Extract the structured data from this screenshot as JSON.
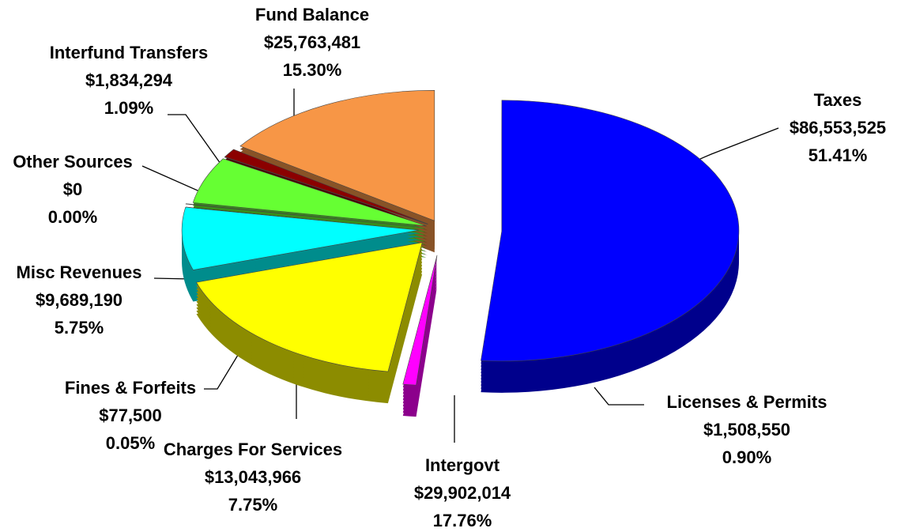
{
  "chart_data": {
    "type": "pie",
    "categories": [
      "Taxes",
      "Licenses & Permits",
      "Intergovt",
      "Charges For Services",
      "Fines & Forfeits",
      "Misc Revenues",
      "Other Sources",
      "Interfund Transfers",
      "Fund Balance"
    ],
    "values": [
      86553525,
      1508550,
      29902014,
      13043966,
      77500,
      9689190,
      0,
      1834294,
      25763481
    ],
    "value_labels": [
      "$86,553,525",
      "$1,508,550",
      "$29,902,014",
      "$13,043,966",
      "$77,500",
      "$9,689,190",
      "$0",
      "$1,834,294",
      "$25,763,481"
    ],
    "percent_labels": [
      "51.41%",
      "0.90%",
      "17.76%",
      "7.75%",
      "0.05%",
      "5.75%",
      "0.00%",
      "1.09%",
      "15.30%"
    ],
    "colors": [
      "#0000ff",
      "#ff00ff",
      "#ffff00",
      "#00ffff",
      "#800000",
      "#66ff33",
      "#ffffff",
      "#8b0000",
      "#f79646"
    ]
  }
}
